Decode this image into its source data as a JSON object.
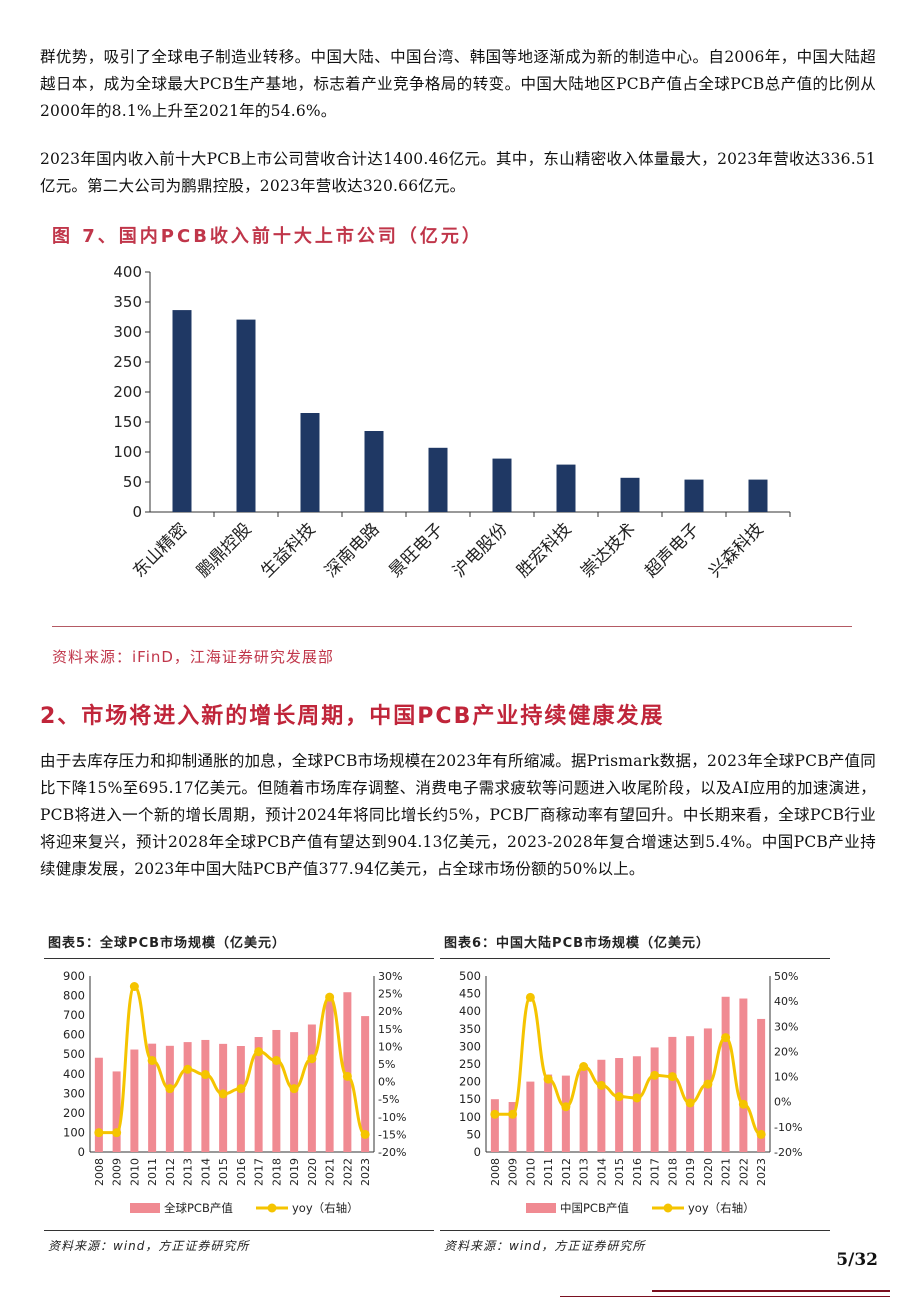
{
  "paragraphs": {
    "p1": "群优势，吸引了全球电子制造业转移。中国大陆、中国台湾、韩国等地逐渐成为新的制造中心。自2006年，中国大陆超越日本，成为全球最大PCB生产基地，标志着产业竞争格局的转变。中国大陆地区PCB产值占全球PCB总产值的比例从2000年的8.1%上升至2021年的54.6%。",
    "p2": "2023年国内收入前十大PCB上市公司营收合计达1400.46亿元。其中，东山精密收入体量最大，2023年营收达336.51亿元。第二大公司为鹏鼎控股，2023年营收达320.66亿元。",
    "p3": "由于去库存压力和抑制通胀的加息，全球PCB市场规模在2023年有所缩减。据Prismark数据，2023年全球PCB产值同比下降15%至695.17亿美元。但随着市场库存调整、消费电子需求疲软等问题进入收尾阶段，以及AI应用的加速演进，PCB将进入一个新的增长周期，预计2024年将同比增长约5%，PCB厂商稼动率有望回升。中长期来看，全球PCB行业将迎来复兴，预计2028年全球PCB产值有望达到904.13亿美元，2023-2028年复合增速达到5.4%。中国PCB产业持续健康发展，2023年中国大陆PCB产值377.94亿美元，占全球市场份额的50%以上。"
  },
  "section_heading": "2、市场将进入新的增长周期，中国PCB产业持续健康发展",
  "page_number": "5/32",
  "colors": {
    "accent_red": "#c0364a",
    "bar_navy": "#1f3864",
    "bar_pink": "#f08a92",
    "line_yellow": "#f5c400"
  },
  "chart_data": [
    {
      "id": "fig7",
      "type": "bar",
      "title": "图 7、国内PCB收入前十大上市公司（亿元）",
      "source": "资料来源：iFinD，江海证券研究发展部",
      "categories": [
        "东山精密",
        "鹏鼎控股",
        "生益科技",
        "深南电路",
        "景旺电子",
        "沪电股份",
        "胜宏科技",
        "崇达技术",
        "超声电子",
        "兴森科技"
      ],
      "values": [
        336.51,
        320.66,
        165,
        135,
        107,
        89,
        79,
        57,
        54,
        54
      ],
      "ylim": [
        0,
        400
      ],
      "yticks": [
        0,
        50,
        100,
        150,
        200,
        250,
        300,
        350,
        400
      ]
    },
    {
      "id": "chart5",
      "type": "bar",
      "title": "图表5：全球PCB市场规模（亿美元）",
      "source": "资料来源：wind，方正证券研究所",
      "categories": [
        "2008",
        "2009",
        "2010",
        "2011",
        "2012",
        "2013",
        "2014",
        "2015",
        "2016",
        "2017",
        "2018",
        "2019",
        "2020",
        "2021",
        "2022",
        "2023"
      ],
      "series": [
        {
          "name": "全球PCB产值",
          "kind": "bar",
          "axis": "left",
          "values": [
            482,
            412,
            524,
            554,
            543,
            562,
            573,
            553,
            542,
            588,
            624,
            613,
            652,
            804,
            817,
            695
          ]
        },
        {
          "name": "yoy（右轴）",
          "kind": "line",
          "axis": "right",
          "values": [
            -14.5,
            -14.5,
            27,
            6,
            -2,
            3.5,
            2,
            -3.5,
            -2,
            8.5,
            6,
            -2,
            6.5,
            24,
            1.5,
            -15
          ]
        }
      ],
      "ylim_left": [
        0,
        900
      ],
      "yticks_left": [
        0,
        100,
        200,
        300,
        400,
        500,
        600,
        700,
        800,
        900
      ],
      "ylim_right": [
        -20,
        30
      ],
      "yticks_right": [
        "-20%",
        "-15%",
        "-10%",
        "-5%",
        "0%",
        "5%",
        "10%",
        "15%",
        "20%",
        "25%",
        "30%"
      ]
    },
    {
      "id": "chart6",
      "type": "bar",
      "title": "图表6：中国大陆PCB市场规模（亿美元）",
      "source": "资料来源：wind，方正证券研究所",
      "categories": [
        "2008",
        "2009",
        "2010",
        "2011",
        "2012",
        "2013",
        "2014",
        "2015",
        "2016",
        "2017",
        "2018",
        "2019",
        "2020",
        "2021",
        "2022",
        "2023"
      ],
      "series": [
        {
          "name": "中国PCB产值",
          "kind": "bar",
          "axis": "left",
          "values": [
            150,
            142,
            200,
            220,
            217,
            245,
            262,
            267,
            272,
            297,
            327,
            329,
            351,
            441,
            436,
            378
          ]
        },
        {
          "name": "yoy（右轴）",
          "kind": "line",
          "axis": "right",
          "values": [
            -5,
            -5,
            41.5,
            9,
            -2,
            14,
            6.5,
            2,
            1.5,
            10.5,
            10,
            -0.5,
            7,
            25.5,
            -1,
            -13
          ]
        }
      ],
      "ylim_left": [
        0,
        500
      ],
      "yticks_left": [
        0,
        50,
        100,
        150,
        200,
        250,
        300,
        350,
        400,
        450,
        500
      ],
      "ylim_right": [
        -20,
        50
      ],
      "yticks_right": [
        "-20%",
        "-10%",
        "0%",
        "10%",
        "20%",
        "30%",
        "40%",
        "50%"
      ]
    }
  ]
}
